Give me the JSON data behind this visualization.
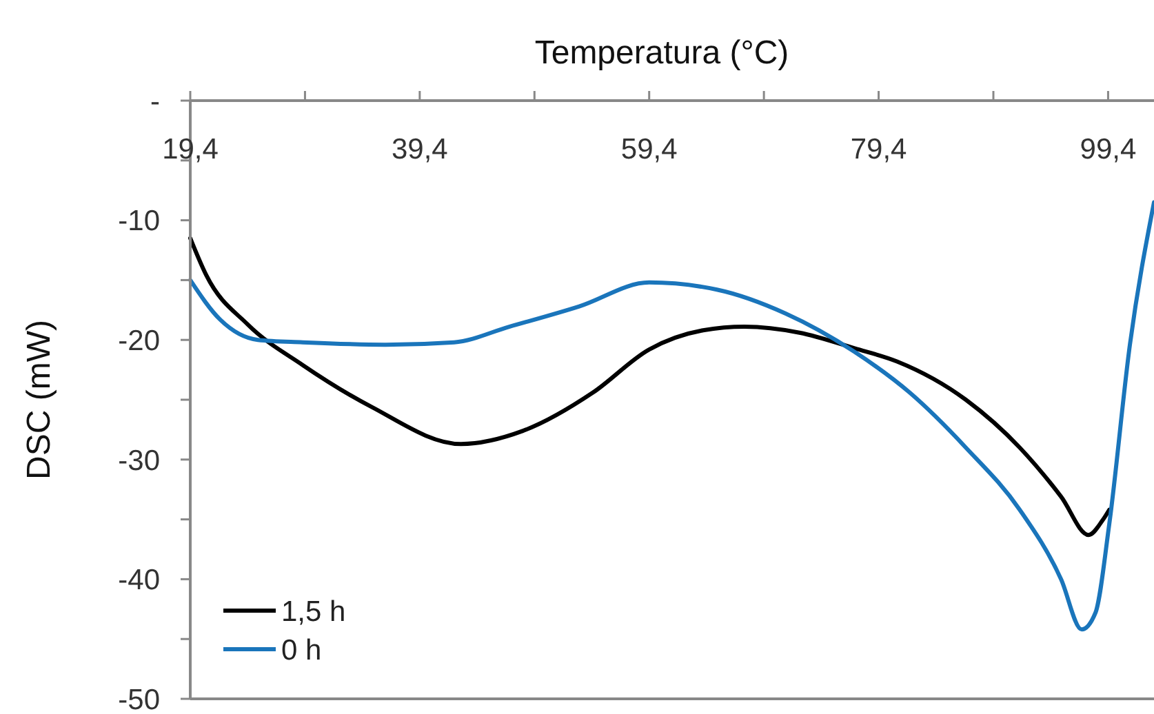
{
  "chart_data": {
    "type": "line",
    "xlabel": "Temperatura (°C)",
    "ylabel": "DSC (mW)",
    "xlim": [
      19.4,
      103.4
    ],
    "ylim": [
      -50,
      0
    ],
    "xticks": [
      {
        "value": 19.4,
        "label": "19,4"
      },
      {
        "value": 29.4,
        "label": null
      },
      {
        "value": 39.4,
        "label": "39,4"
      },
      {
        "value": 49.4,
        "label": null
      },
      {
        "value": 59.4,
        "label": "59,4"
      },
      {
        "value": 69.4,
        "label": null
      },
      {
        "value": 79.4,
        "label": "79,4"
      },
      {
        "value": 89.4,
        "label": null
      },
      {
        "value": 99.4,
        "label": "99,4"
      }
    ],
    "yticks": [
      {
        "value": 0,
        "label": "-"
      },
      {
        "value": -5,
        "label": null
      },
      -10,
      {
        "value": -15,
        "label": null
      },
      -20,
      {
        "value": -25,
        "label": null
      },
      -30,
      {
        "value": -35,
        "label": null
      },
      -40,
      {
        "value": -45,
        "label": null
      },
      -50
    ],
    "grid": false,
    "legend": "bottom left",
    "marker": "none",
    "line_style": "solid",
    "series": [
      {
        "name": "1,5 h",
        "color": "#000000",
        "x": [
          19.4,
          20.8,
          24.4,
          29.2,
          35.2,
          43.0,
          48.4,
          54.5,
          59.4,
          64.1,
          67.7,
          72.5,
          77.3,
          81.0,
          87.0,
          91.7,
          95.3,
          97.7,
          98.9,
          99.5
        ],
        "values": [
          -11.5,
          -14.6,
          -18.7,
          -22.1,
          -25.6,
          -28.7,
          -27.6,
          -24.4,
          -20.8,
          -19.2,
          -18.9,
          -19.4,
          -20.7,
          -21.8,
          -25.0,
          -29.0,
          -33.1,
          -36.3,
          -35.1,
          -34.2
        ]
      },
      {
        "name": "0 h",
        "color": "#1a75bb",
        "x": [
          19.4,
          22.0,
          25.3,
          29.2,
          36.4,
          42.4,
          47.2,
          53.3,
          59.4,
          65.3,
          71.3,
          77.3,
          82.1,
          87.0,
          91.7,
          95.3,
          97.1,
          98.3,
          99.5,
          101.3,
          103.4
        ],
        "values": [
          -15.0,
          -18.3,
          -20.0,
          -20.2,
          -20.4,
          -20.2,
          -18.9,
          -17.2,
          -15.2,
          -15.8,
          -17.8,
          -21.0,
          -24.4,
          -29.0,
          -34.2,
          -40.0,
          -44.2,
          -42.8,
          -35.4,
          -20.4,
          -8.5
        ]
      }
    ]
  }
}
